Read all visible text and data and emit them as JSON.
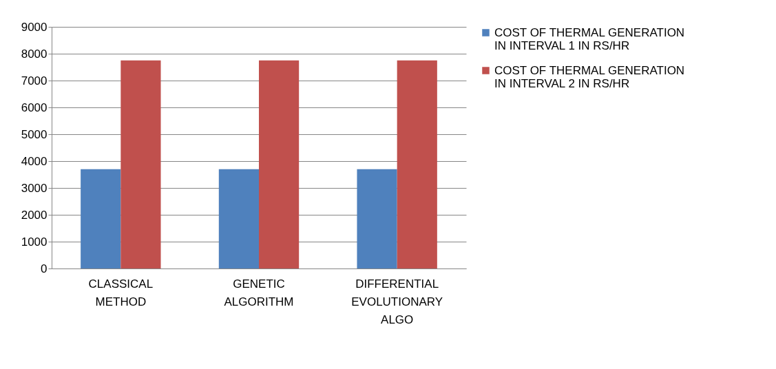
{
  "chart_data": {
    "type": "bar",
    "categories": [
      "CLASSICAL METHOD",
      "GENETIC ALGORITHM",
      "DIFFERENTIAL EVOLUTIONARY ALGO"
    ],
    "series": [
      {
        "name": "COST OF THERMAL GENERATION IN INTERVAL 1 IN RS/HR",
        "color": "#4f81bd",
        "values": [
          3700,
          3700,
          3700
        ]
      },
      {
        "name": "COST OF THERMAL GENERATION IN INTERVAL 2 IN RS/HR",
        "color": "#c0504d",
        "values": [
          7750,
          7750,
          7750
        ]
      }
    ],
    "ylim": [
      0,
      9000
    ],
    "yticks": [
      0,
      1000,
      2000,
      3000,
      4000,
      5000,
      6000,
      7000,
      8000,
      9000
    ],
    "grid": "y",
    "legend": "right"
  }
}
